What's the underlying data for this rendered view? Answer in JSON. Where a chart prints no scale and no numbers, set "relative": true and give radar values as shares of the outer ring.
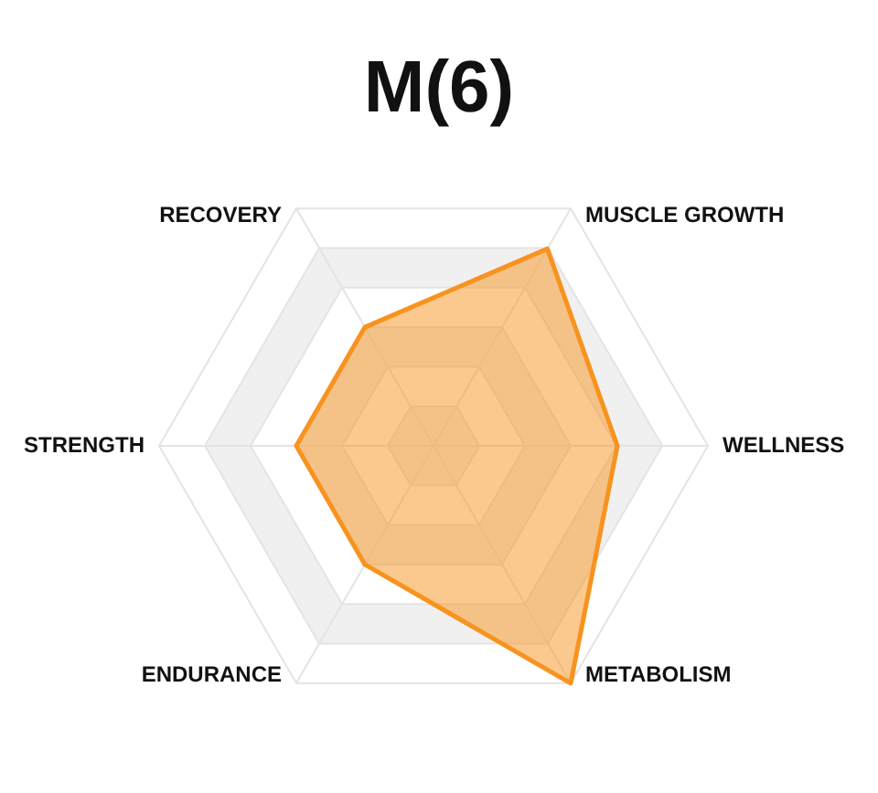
{
  "chart_data": {
    "type": "radar",
    "title": "M(6)",
    "categories": [
      "MUSCLE GROWTH",
      "WELLNESS",
      "METABOLISM",
      "ENDURANCE",
      "STRENGTH",
      "RECOVERY"
    ],
    "relative": true,
    "series": [
      {
        "color": "#f7931e",
        "values": [
          0.83,
          0.67,
          1,
          0.5,
          0.5,
          0.5
        ]
      }
    ],
    "grid": true
  }
}
